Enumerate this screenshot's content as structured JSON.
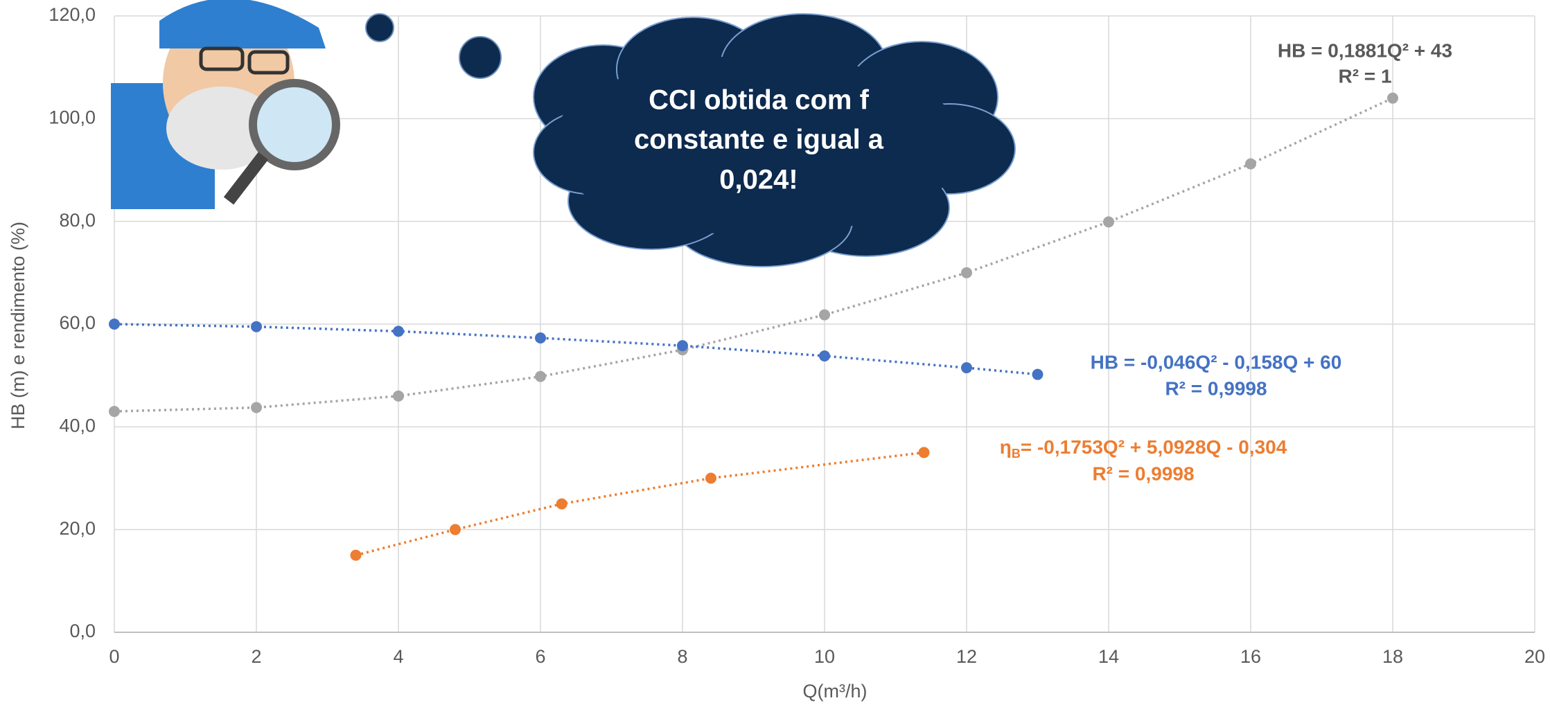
{
  "chart_data": {
    "type": "scatter",
    "x_label": "Q(m³/h)",
    "y_label": "HB (m) e rendimento (%)",
    "xlim": [
      0,
      20
    ],
    "xticks": [
      0,
      2,
      4,
      6,
      8,
      10,
      12,
      14,
      16,
      18,
      20
    ],
    "ylim": [
      0,
      120
    ],
    "yticks": [
      {
        "value": 0,
        "label": "0,0"
      },
      {
        "value": 20,
        "label": "20,0"
      },
      {
        "value": 40,
        "label": "40,0"
      },
      {
        "value": 60,
        "label": "60,0"
      },
      {
        "value": 80,
        "label": "80,0"
      },
      {
        "value": 100,
        "label": "100,0"
      },
      {
        "value": 120,
        "label": "120,0"
      }
    ],
    "grid": true,
    "series": [
      {
        "color": "#a5a5a5",
        "x": [
          0,
          2,
          4,
          6,
          8,
          10,
          12,
          14,
          16,
          18
        ],
        "values": [
          43,
          43.75,
          46,
          49.8,
          55,
          61.8,
          70,
          79.9,
          91.2,
          104
        ],
        "equation": "HB = 0,1881Q² + 43",
        "r_squared": "R² = 1"
      },
      {
        "color": "#4472c4",
        "x": [
          0,
          2,
          4,
          6,
          8,
          10,
          12,
          13
        ],
        "values": [
          60,
          59.5,
          58.6,
          57.3,
          55.8,
          53.8,
          51.5,
          50.2
        ],
        "equation": "HB = -0,046Q² - 0,158Q + 60",
        "r_squared": "R² = 0,9998"
      },
      {
        "color": "#ed7d31",
        "x": [
          3.4,
          4.8,
          6.3,
          8.4,
          11.4
        ],
        "values": [
          15,
          20,
          25,
          30,
          35
        ],
        "equation": {
          "symbol": "η",
          "subscript": "B",
          "text": "= -0,1753Q² + 5,0928Q - 0,304"
        },
        "r_squared": "R² = 0,9998"
      }
    ],
    "callout": [
      "CCI obtida com f",
      "constante e igual a",
      "0,024!"
    ]
  }
}
